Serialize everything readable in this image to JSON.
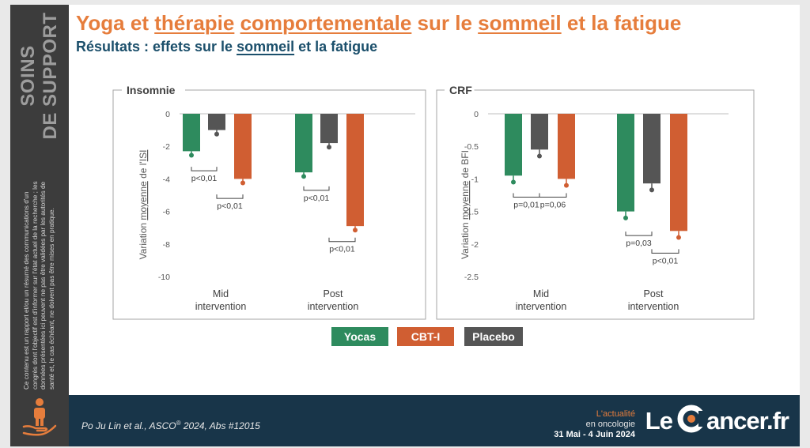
{
  "sidebar": {
    "title_line1": "SOINS",
    "title_line2": "DE SUPPORT",
    "disclaimer": "Ce contenu est un rapport et/ou un résumé des communications d'un congrès dont l'objectif est d'informer sur l'état actuel de la recherche ; les données présentées ici peuvent ne pas être validées par les autorités de santé et, le cas échéant, ne doivent pas être mises en pratique."
  },
  "header": {
    "title_parts": [
      "Yoga et ",
      "thérapie",
      " ",
      "comportementale",
      " sur le ",
      "sommeil",
      " et la fatigue"
    ],
    "subtitle_parts": [
      "Résultats : effets sur le ",
      "sommeil",
      " et la fatigue"
    ]
  },
  "legend": [
    {
      "label": "Yocas",
      "color": "#2e8b5e"
    },
    {
      "label": "CBT-I",
      "color": "#d05e32"
    },
    {
      "label": "Placebo",
      "color": "#555555"
    }
  ],
  "chart_data": [
    {
      "type": "bar",
      "title": "Insomnie",
      "ylabel_parts": [
        "Variation ",
        "moyenne",
        " de l'",
        "ISI"
      ],
      "ylim": [
        -10,
        0
      ],
      "yticks": [
        0,
        -2,
        -4,
        -6,
        -8,
        -10
      ],
      "ytick_labels": [
        "0",
        "-2",
        "-4",
        "-6",
        "-8",
        "-10"
      ],
      "categories": [
        "Mid\nintervention",
        "Post\nintervention"
      ],
      "series": [
        {
          "name": "Yocas",
          "values": [
            -2.3,
            -3.6
          ],
          "error": [
            0.25,
            0.25
          ]
        },
        {
          "name": "Placebo",
          "values": [
            -1.0,
            -1.8
          ],
          "error": [
            0.25,
            0.25
          ]
        },
        {
          "name": "CBT-I",
          "values": [
            -4.0,
            -6.9
          ],
          "error": [
            0.25,
            0.25
          ]
        }
      ],
      "annotations": [
        {
          "text": "p<0,01",
          "category": 0,
          "from": 0,
          "to": 1,
          "y": -3.5
        },
        {
          "text": "p<0,01",
          "category": 0,
          "from": 1,
          "to": 2,
          "y": -5.2
        },
        {
          "text": "p<0,01",
          "category": 1,
          "from": 0,
          "to": 1,
          "y": -4.7
        },
        {
          "text": "p<0,01",
          "category": 1,
          "from": 1,
          "to": 2,
          "y": -7.85
        }
      ]
    },
    {
      "type": "bar",
      "title": "CRF",
      "ylabel_parts": [
        "Variation ",
        "moyenne",
        " de BFI"
      ],
      "ylim": [
        -2.5,
        0
      ],
      "yticks": [
        0,
        -0.5,
        -1,
        -1.5,
        -2,
        -2.5
      ],
      "ytick_labels": [
        "0",
        "-0.5",
        "-1",
        "-1.5",
        "-2",
        "-2.5"
      ],
      "categories": [
        "Mid\nintervention",
        "Post\nintervention"
      ],
      "series": [
        {
          "name": "Yocas",
          "values": [
            -0.95,
            -1.5
          ],
          "error": [
            0.1,
            0.1
          ]
        },
        {
          "name": "Placebo",
          "values": [
            -0.55,
            -1.07
          ],
          "error": [
            0.1,
            0.1
          ]
        },
        {
          "name": "CBT-I",
          "values": [
            -1.0,
            -1.8
          ],
          "error": [
            0.1,
            0.1
          ]
        }
      ],
      "annotations": [
        {
          "text": "p=0,01",
          "category": 0,
          "from": 0,
          "to": 1,
          "y": -1.28
        },
        {
          "text": "p=0,06",
          "category": 0,
          "from": 1,
          "to": 2,
          "y": -1.28
        },
        {
          "text": "p=0,03",
          "category": 1,
          "from": 0,
          "to": 1,
          "y": -1.87
        },
        {
          "text": "p<0,01",
          "category": 1,
          "from": 1,
          "to": 2,
          "y": -2.14
        }
      ]
    }
  ],
  "footer": {
    "citation": "Po Ju Lin et al., ASCO",
    "citation_sup": "®",
    "citation_end": " 2024, Abs #12015",
    "line1": "L'actualité",
    "line2": "en oncologie",
    "dates": "31 Mai - 4 Juin 2024",
    "logo_left": "Le",
    "logo_right": "ancer.fr"
  }
}
